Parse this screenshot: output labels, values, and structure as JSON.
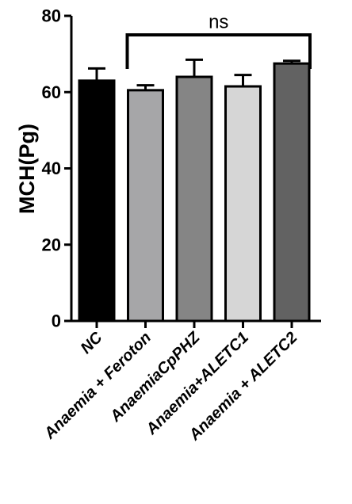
{
  "chart_data": {
    "type": "bar",
    "title": "",
    "xlabel": "",
    "ylabel": "MCH(Pg)",
    "ylim": [
      0,
      80
    ],
    "yticks": [
      0,
      20,
      40,
      60,
      80
    ],
    "grid": false,
    "categories": [
      "NC",
      "Anaemia + Feroton",
      "AnaemiaCpPHZ",
      "Anaemia+ALETC1",
      "Anaemia + ALETC2"
    ],
    "values": [
      63,
      60.5,
      64,
      61.5,
      67.5
    ],
    "errors": [
      3.2,
      1.3,
      4.5,
      3.0,
      0.7
    ],
    "bar_colors": [
      "#000000",
      "#a6a6a8",
      "#858585",
      "#d6d6d6",
      "#626262"
    ],
    "annotations": [
      {
        "text": "ns",
        "from_category": 1,
        "to_category": 4
      }
    ]
  }
}
